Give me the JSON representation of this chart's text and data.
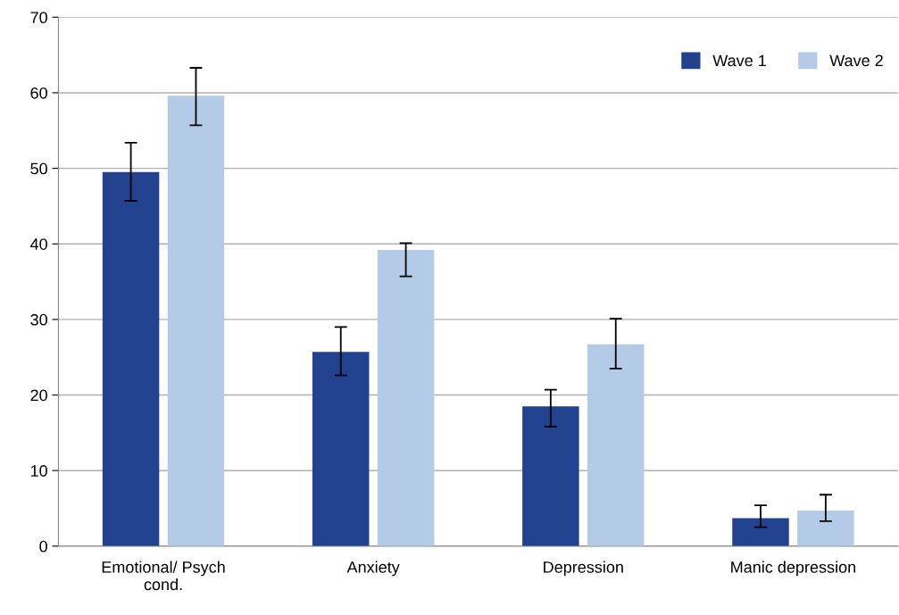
{
  "chart_data": {
    "type": "bar",
    "categories": [
      "Emotional/ Psych cond.",
      "Anxiety",
      "Depression",
      "Manic depression"
    ],
    "series": [
      {
        "name": "Wave 1",
        "color": "#22418f",
        "values": [
          49.5,
          25.7,
          18.5,
          3.7
        ],
        "errors": [
          [
            45.7,
            53.4
          ],
          [
            22.6,
            29.0
          ],
          [
            15.8,
            20.7
          ],
          [
            2.5,
            5.4
          ]
        ]
      },
      {
        "name": "Wave 2",
        "color": "#b3cbe6",
        "values": [
          59.6,
          39.2,
          26.7,
          4.7
        ],
        "errors": [
          [
            55.7,
            63.3
          ],
          [
            35.7,
            40.1
          ],
          [
            23.5,
            30.1
          ],
          [
            3.3,
            6.8
          ]
        ]
      }
    ],
    "ylim": [
      0,
      70
    ],
    "yticks": [
      0,
      10,
      20,
      30,
      40,
      50,
      60,
      70
    ],
    "grid": "y",
    "legend": "top right"
  }
}
